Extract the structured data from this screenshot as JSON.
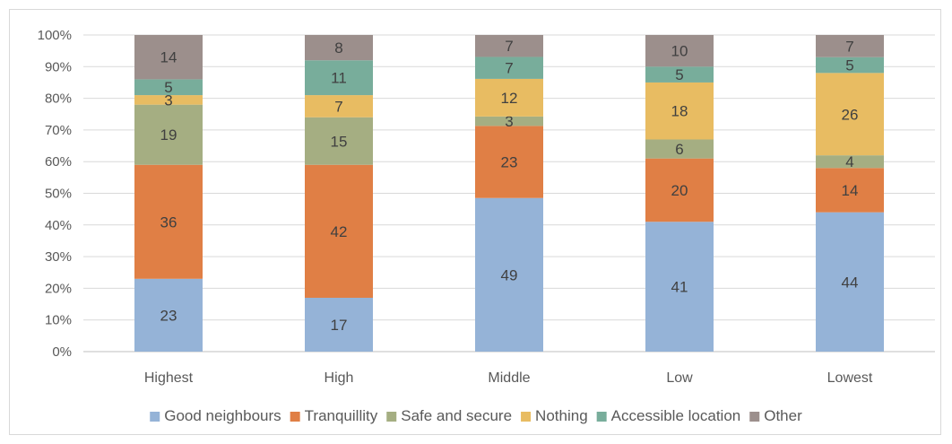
{
  "chart_data": {
    "type": "bar",
    "stacked": true,
    "title": "",
    "xlabel": "",
    "ylabel": "",
    "ylim": [
      0,
      100
    ],
    "yticks": [
      "0%",
      "10%",
      "20%",
      "30%",
      "40%",
      "50%",
      "60%",
      "70%",
      "80%",
      "90%",
      "100%"
    ],
    "grid": true,
    "legend_position": "bottom",
    "categories": [
      "Highest",
      "High",
      "Middle",
      "Low",
      "Lowest"
    ],
    "series": [
      {
        "name": "Good neighbours",
        "color": "#95b3d7",
        "values": [
          23,
          17,
          49,
          41,
          44
        ]
      },
      {
        "name": "Tranquillity",
        "color": "#e07f45",
        "values": [
          36,
          42,
          23,
          20,
          14
        ]
      },
      {
        "name": "Safe and secure",
        "color": "#a5ae82",
        "values": [
          19,
          15,
          3,
          6,
          4
        ]
      },
      {
        "name": "Nothing",
        "color": "#e8bc62",
        "values": [
          3,
          7,
          12,
          18,
          26
        ]
      },
      {
        "name": "Accessible location",
        "color": "#78ad9b",
        "values": [
          5,
          11,
          7,
          5,
          5
        ]
      },
      {
        "name": "Other",
        "color": "#9c8f8c",
        "values": [
          14,
          8,
          7,
          10,
          7
        ]
      }
    ]
  }
}
